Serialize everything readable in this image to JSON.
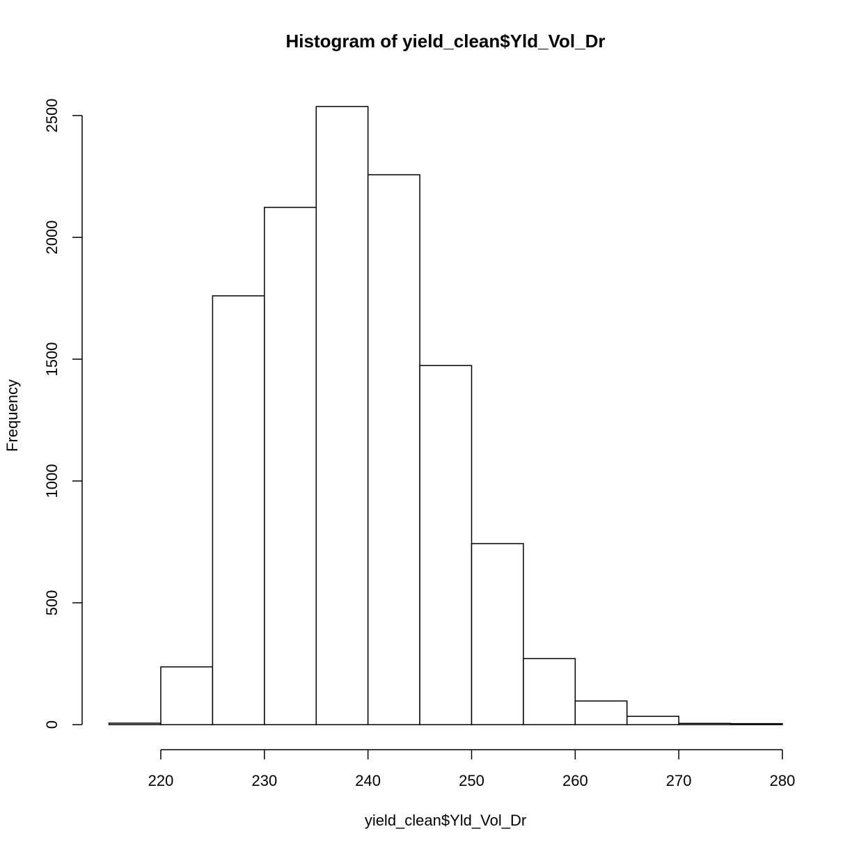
{
  "chart_data": {
    "type": "bar",
    "title": "Histogram of yield_clean$Yld_Vol_Dr",
    "xlabel": "yield_clean$Yld_Vol_Dr",
    "ylabel": "Frequency",
    "bin_edges": [
      215,
      220,
      225,
      230,
      235,
      240,
      245,
      250,
      255,
      260,
      265,
      270,
      275,
      280
    ],
    "categories": [
      "215-220",
      "220-225",
      "225-230",
      "230-235",
      "235-240",
      "240-245",
      "245-250",
      "250-255",
      "255-260",
      "260-265",
      "265-270",
      "270-275",
      "275-280"
    ],
    "values": [
      6,
      237,
      1760,
      2123,
      2537,
      2257,
      1474,
      743,
      271,
      97,
      34,
      5,
      4
    ],
    "x_ticks": [
      220,
      230,
      240,
      250,
      260,
      270,
      280
    ],
    "y_ticks": [
      0,
      500,
      1000,
      1500,
      2000,
      2500
    ],
    "xlim": [
      215,
      280
    ],
    "ylim": [
      0,
      2537
    ],
    "grid": false,
    "legend": null
  }
}
